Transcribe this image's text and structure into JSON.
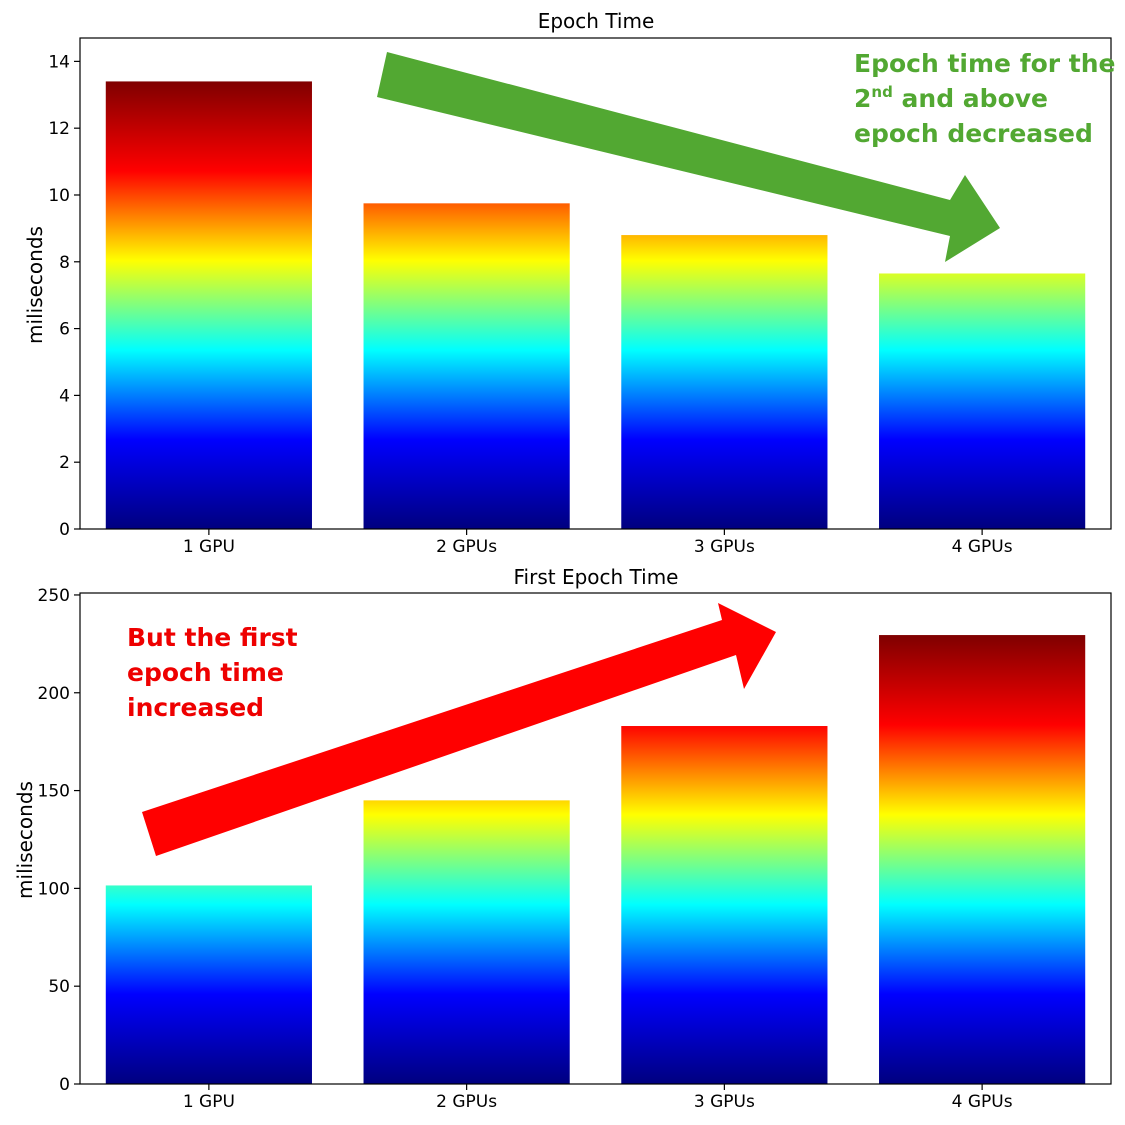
{
  "colormap": {
    "name": "jet",
    "stops": [
      "#00007f",
      "#0000ff",
      "#00ffff",
      "#ffff00",
      "#ff0000",
      "#7f0000"
    ]
  },
  "annotations": {
    "top": {
      "line1": "Epoch time for the",
      "line2_main": "2",
      "line2_sup": "nd",
      "line2_rest": " and above",
      "line3": "epoch decreased",
      "color": "#52a832",
      "arrow_color": "#52a832"
    },
    "bottom": {
      "line1": "But the first",
      "line2": "epoch time",
      "line3": "increased",
      "color": "#ee0000",
      "arrow_color": "#ff0000"
    }
  },
  "chart_data": [
    {
      "type": "bar",
      "title": "Epoch Time",
      "xlabel": "",
      "ylabel": "miliseconds",
      "categories": [
        "1 GPU",
        "2 GPUs",
        "3 GPUs",
        "4 GPUs"
      ],
      "values": [
        13.4,
        9.75,
        8.8,
        7.65
      ],
      "ylim": [
        0,
        14.7
      ],
      "yticks": [
        0,
        2,
        4,
        6,
        8,
        10,
        12,
        14
      ],
      "grid": false,
      "bar_fill": "jet gradient scaled to the tallest bar"
    },
    {
      "type": "bar",
      "title": "First Epoch Time",
      "xlabel": "",
      "ylabel": "miliseconds",
      "categories": [
        "1 GPU",
        "2 GPUs",
        "3 GPUs",
        "4 GPUs"
      ],
      "values": [
        101.5,
        145,
        183,
        229.5
      ],
      "ylim": [
        0,
        251
      ],
      "yticks": [
        0,
        50,
        100,
        150,
        200,
        250
      ],
      "grid": false,
      "bar_fill": "jet gradient scaled to the tallest bar"
    }
  ]
}
